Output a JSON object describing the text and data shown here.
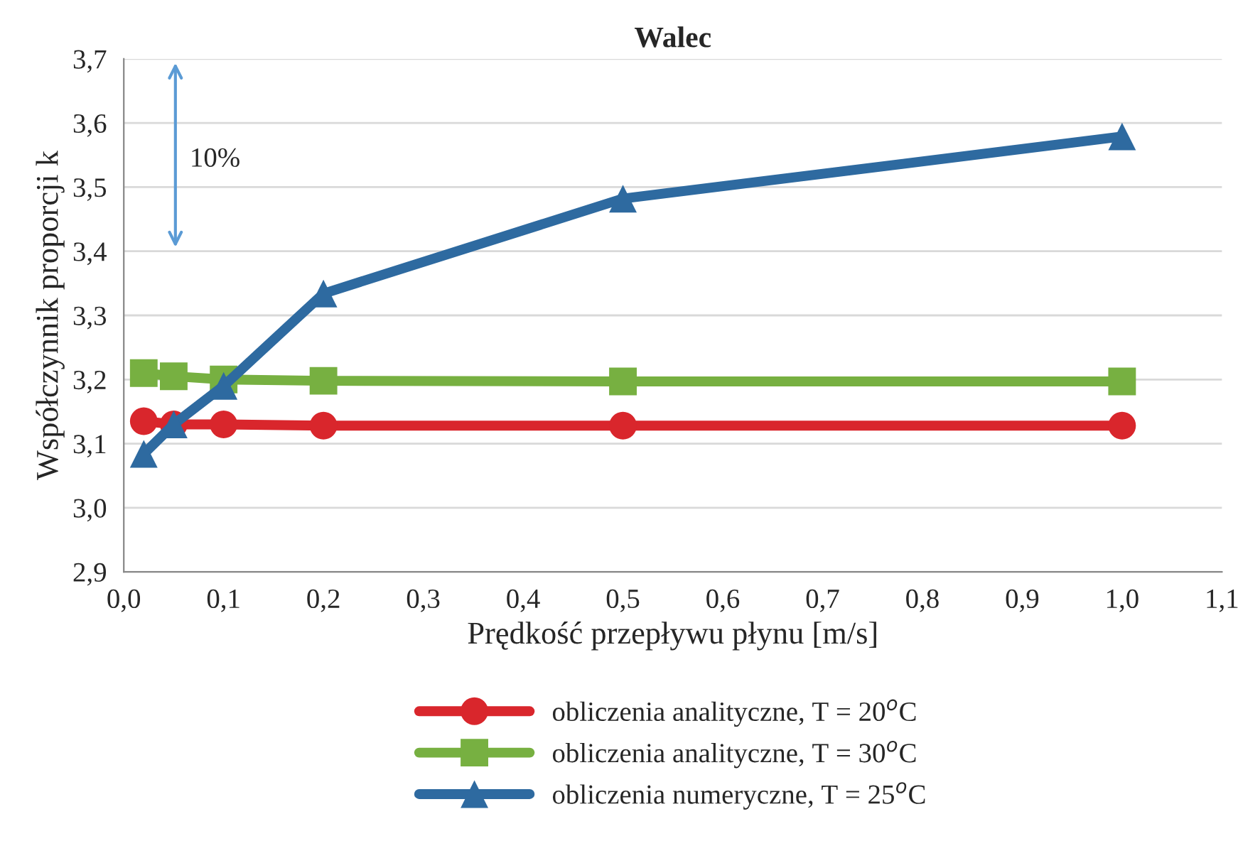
{
  "chart_data": {
    "type": "line",
    "title": "Walec",
    "xlabel": "Prędkość przepływu płynu [m/s]",
    "ylabel": "Współczynnik proporcji k",
    "x": [
      0.02,
      0.05,
      0.1,
      0.2,
      0.5,
      1.0
    ],
    "series": [
      {
        "name": "obliczenia analityczne, T = 20$^{o}$C",
        "color": "#d9262c",
        "marker": "circle",
        "values": [
          3.135,
          3.13,
          3.13,
          3.128,
          3.128,
          3.128
        ]
      },
      {
        "name": "obliczenia analityczne, T = 30$^{o}$C",
        "color": "#77b041",
        "marker": "square",
        "values": [
          3.21,
          3.205,
          3.2,
          3.198,
          3.197,
          3.197
        ]
      },
      {
        "name": "obliczenia numeryczne, T = 25$^{o}$C",
        "color": "#2e6aa0",
        "marker": "triangle",
        "values": [
          3.084,
          3.13,
          3.19,
          3.334,
          3.482,
          3.579
        ]
      }
    ],
    "xlim": [
      0.0,
      1.1
    ],
    "xticks": [
      {
        "value": 0.0,
        "label": "0,0"
      },
      {
        "value": 0.1,
        "label": "0,1"
      },
      {
        "value": 0.2,
        "label": "0,2"
      },
      {
        "value": 0.3,
        "label": "0,3"
      },
      {
        "value": 0.4,
        "label": "0,4"
      },
      {
        "value": 0.5,
        "label": "0,5"
      },
      {
        "value": 0.6,
        "label": "0,6"
      },
      {
        "value": 0.7,
        "label": "0,7"
      },
      {
        "value": 0.8,
        "label": "0,8"
      },
      {
        "value": 0.9,
        "label": "0,9"
      },
      {
        "value": 1.0,
        "label": "1,0"
      },
      {
        "value": 1.1,
        "label": "1,1"
      }
    ],
    "ylim": [
      2.9,
      3.7
    ],
    "yticks": [
      {
        "value": 2.9,
        "label": "2,9"
      },
      {
        "value": 3.0,
        "label": "3,0"
      },
      {
        "value": 3.1,
        "label": "3,1"
      },
      {
        "value": 3.2,
        "label": "3,2"
      },
      {
        "value": 3.3,
        "label": "3,3"
      },
      {
        "value": 3.4,
        "label": "3,4"
      },
      {
        "value": 3.5,
        "label": "3,5"
      },
      {
        "value": 3.6,
        "label": "3,6"
      },
      {
        "value": 3.7,
        "label": "3,7"
      }
    ],
    "annotations": [
      "10%"
    ],
    "grid": "y",
    "legend": "bottom",
    "line_style": "solid"
  }
}
